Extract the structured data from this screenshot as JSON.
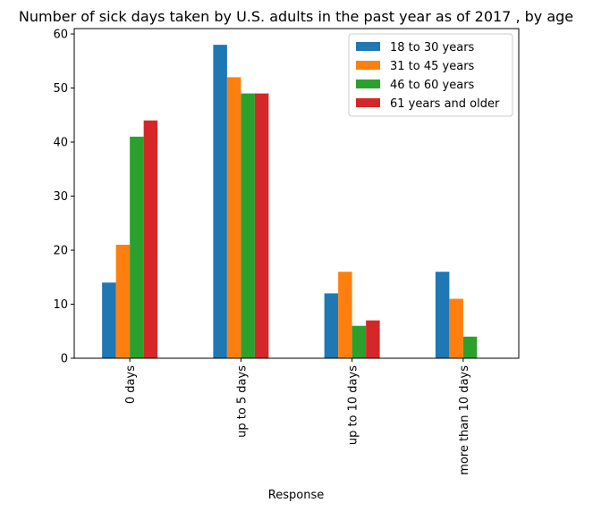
{
  "chart_data": {
    "type": "bar",
    "title": "Number of sick days taken by U.S. adults in the past year as of 2017 , by age",
    "xlabel": "Response",
    "ylabel": "",
    "categories": [
      "0 days",
      "up to 5 days",
      "up to 10 days",
      "more than 10 days"
    ],
    "series": [
      {
        "name": "18 to 30 years",
        "color": "#1f77b4",
        "values": [
          14,
          58,
          12,
          16
        ]
      },
      {
        "name": "31 to 45 years",
        "color": "#ff7f0e",
        "values": [
          21,
          52,
          16,
          11
        ]
      },
      {
        "name": "46 to 60 years",
        "color": "#2ca02c",
        "values": [
          41,
          49,
          6,
          4
        ]
      },
      {
        "name": "61 years and older",
        "color": "#d62728",
        "values": [
          44,
          49,
          7,
          0
        ]
      }
    ],
    "ylim": [
      0,
      61
    ],
    "yticks": [
      0,
      10,
      20,
      30,
      40,
      50,
      60
    ],
    "grid": false,
    "legend_position": "top-right"
  }
}
